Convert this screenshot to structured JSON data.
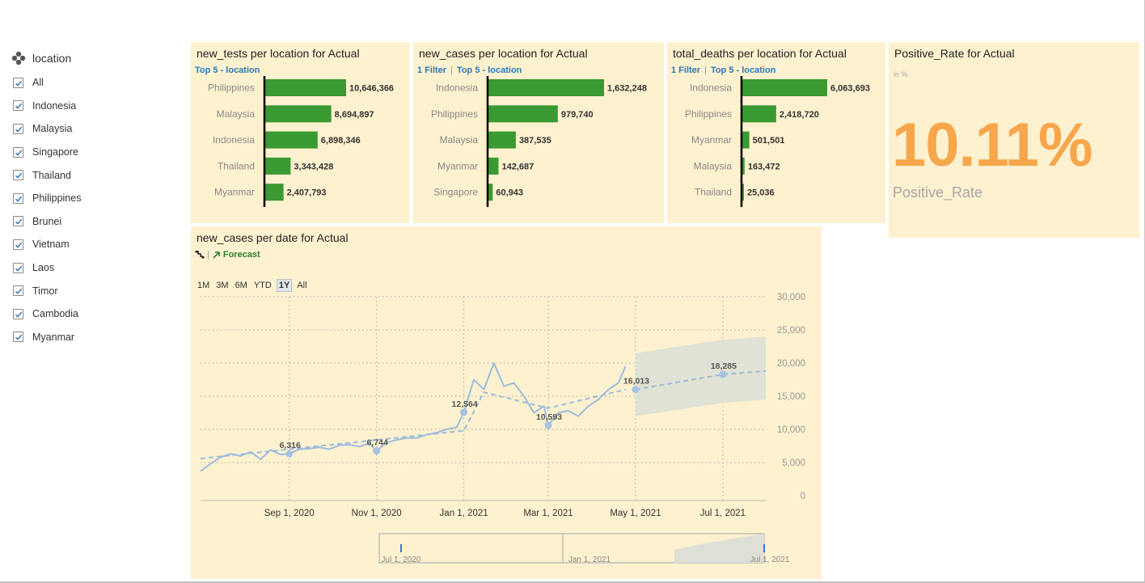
{
  "filter": {
    "title": "location",
    "items": [
      {
        "label": "All",
        "checked": true
      },
      {
        "label": "Indonesia",
        "checked": true
      },
      {
        "label": "Malaysia",
        "checked": true
      },
      {
        "label": "Singapore",
        "checked": true
      },
      {
        "label": "Thailand",
        "checked": true
      },
      {
        "label": "Philippines",
        "checked": true
      },
      {
        "label": "Brunei",
        "checked": true
      },
      {
        "label": "Vietnam",
        "checked": true
      },
      {
        "label": "Laos",
        "checked": true
      },
      {
        "label": "Timor",
        "checked": true
      },
      {
        "label": "Cambodia",
        "checked": true
      },
      {
        "label": "Myanmar",
        "checked": true
      }
    ]
  },
  "colors": {
    "tile_bg": "#fdf1cf",
    "bar": "#3a9a32",
    "kpi": "#f7a64b",
    "link": "#2a79b8",
    "series": "#9dbcdc",
    "forecast_band": "#dde0d4"
  },
  "chart_data": [
    {
      "type": "bar",
      "orientation": "horizontal",
      "title": "new_tests per location for Actual",
      "filter_label": "",
      "topn_label": "Top 5 - location",
      "categories": [
        "Philippines",
        "Malaysia",
        "Indonesia",
        "Thailand",
        "Myanmar"
      ],
      "values": [
        10646366,
        8694897,
        6898346,
        3343428,
        2407793
      ],
      "value_labels": [
        "10,646,366",
        "8,694,897",
        "6,898,346",
        "3,343,428",
        "2,407,793"
      ]
    },
    {
      "type": "bar",
      "orientation": "horizontal",
      "title": "new_cases per location for Actual",
      "filter_label": "1 Filter",
      "topn_label": "Top 5 - location",
      "categories": [
        "Indonesia",
        "Philippines",
        "Malaysia",
        "Myanmar",
        "Singapore"
      ],
      "values": [
        1632248,
        979740,
        387535,
        142687,
        60943
      ],
      "value_labels": [
        "1,632,248",
        "979,740",
        "387,535",
        "142,687",
        "60,943"
      ]
    },
    {
      "type": "bar",
      "orientation": "horizontal",
      "title": "total_deaths per location for Actual",
      "filter_label": "1 Filter",
      "topn_label": "Top 5 - location",
      "categories": [
        "Indonesia",
        "Philippines",
        "Myanmar",
        "Malaysia",
        "Thailand"
      ],
      "values": [
        6063693,
        2418720,
        501501,
        163472,
        25036
      ],
      "value_labels": [
        "6,063,693",
        "2,418,720",
        "501,501",
        "163,472",
        "25,036"
      ]
    },
    {
      "type": "line",
      "title": "new_cases per date for Actual",
      "legend_forecast": "Forecast",
      "range_buttons": [
        "1M",
        "3M",
        "6M",
        "YTD",
        "1Y",
        "All"
      ],
      "active_range": "1Y",
      "x_range": [
        "2020-07-01",
        "2021-07-31"
      ],
      "ylim": [
        0,
        30000
      ],
      "y_ticks": [
        0,
        5000,
        10000,
        15000,
        20000,
        25000,
        30000
      ],
      "y_tick_labels": [
        "0",
        "5,000",
        "10,000",
        "15,000",
        "20,000",
        "25,000",
        "30,000"
      ],
      "x_tick_labels": [
        "Sep 1, 2020",
        "Nov 1, 2020",
        "Jan 1, 2021",
        "Mar 1, 2021",
        "May 1, 2021",
        "Jul 1, 2021"
      ],
      "x_tick_dates": [
        "2020-09-01",
        "2020-11-01",
        "2021-01-01",
        "2021-03-01",
        "2021-05-01",
        "2021-07-01"
      ],
      "grid": true,
      "actual_series": {
        "name": "",
        "x": [
          "2020-07-01",
          "2020-07-08",
          "2020-07-15",
          "2020-07-22",
          "2020-07-29",
          "2020-08-05",
          "2020-08-12",
          "2020-08-19",
          "2020-08-26",
          "2020-09-01",
          "2020-09-08",
          "2020-09-15",
          "2020-09-22",
          "2020-09-29",
          "2020-10-06",
          "2020-10-13",
          "2020-10-20",
          "2020-10-27",
          "2020-11-01",
          "2020-11-08",
          "2020-11-15",
          "2020-11-22",
          "2020-11-29",
          "2020-12-06",
          "2020-12-13",
          "2020-12-20",
          "2020-12-27",
          "2021-01-01",
          "2021-01-08",
          "2021-01-15",
          "2021-01-22",
          "2021-01-29",
          "2021-02-05",
          "2021-02-12",
          "2021-02-19",
          "2021-02-26",
          "2021-03-01",
          "2021-03-08",
          "2021-03-15",
          "2021-03-22",
          "2021-03-29",
          "2021-04-05",
          "2021-04-12",
          "2021-04-19",
          "2021-04-24"
        ],
        "values": [
          3700,
          4800,
          5800,
          6300,
          6000,
          6600,
          5500,
          6900,
          6200,
          6316,
          7000,
          7100,
          7300,
          7000,
          7600,
          7700,
          7400,
          7900,
          6744,
          8000,
          8400,
          8700,
          8700,
          9200,
          9500,
          10000,
          10300,
          12564,
          17500,
          16000,
          20000,
          16500,
          17000,
          15000,
          12500,
          13500,
          10593,
          12500,
          12800,
          12000,
          13500,
          14500,
          16000,
          17000,
          19500
        ]
      },
      "trend_series": {
        "x": [
          "2020-07-01",
          "2021-01-01",
          "2021-01-15",
          "2021-03-01",
          "2021-04-24"
        ],
        "values": [
          5600,
          9800,
          15600,
          13200,
          16013
        ]
      },
      "forecast_series": {
        "x": [
          "2021-05-01",
          "2021-07-01",
          "2021-07-31"
        ],
        "values": [
          16013,
          18285,
          18800
        ],
        "lower": [
          12000,
          14000,
          14500
        ],
        "upper": [
          21500,
          23500,
          24000
        ]
      },
      "annotations": [
        {
          "x": "2020-09-01",
          "y": 6316,
          "label": "6,316"
        },
        {
          "x": "2020-11-01",
          "y": 6744,
          "label": "6,744"
        },
        {
          "x": "2021-01-01",
          "y": 12564,
          "label": "12,564"
        },
        {
          "x": "2021-03-01",
          "y": 10593,
          "label": "10,593"
        },
        {
          "x": "2021-05-01",
          "y": 16013,
          "label": "16,013"
        },
        {
          "x": "2021-07-01",
          "y": 18285,
          "label": "18,285"
        }
      ],
      "navigator_labels": [
        "Jul 1, 2020",
        "Jan 1, 2021",
        "Jul 1, 2021"
      ]
    }
  ],
  "kpi": {
    "title": "Positive_Rate for Actual",
    "unit": "in %",
    "value": "10.11%",
    "label": "Positive_Rate"
  }
}
